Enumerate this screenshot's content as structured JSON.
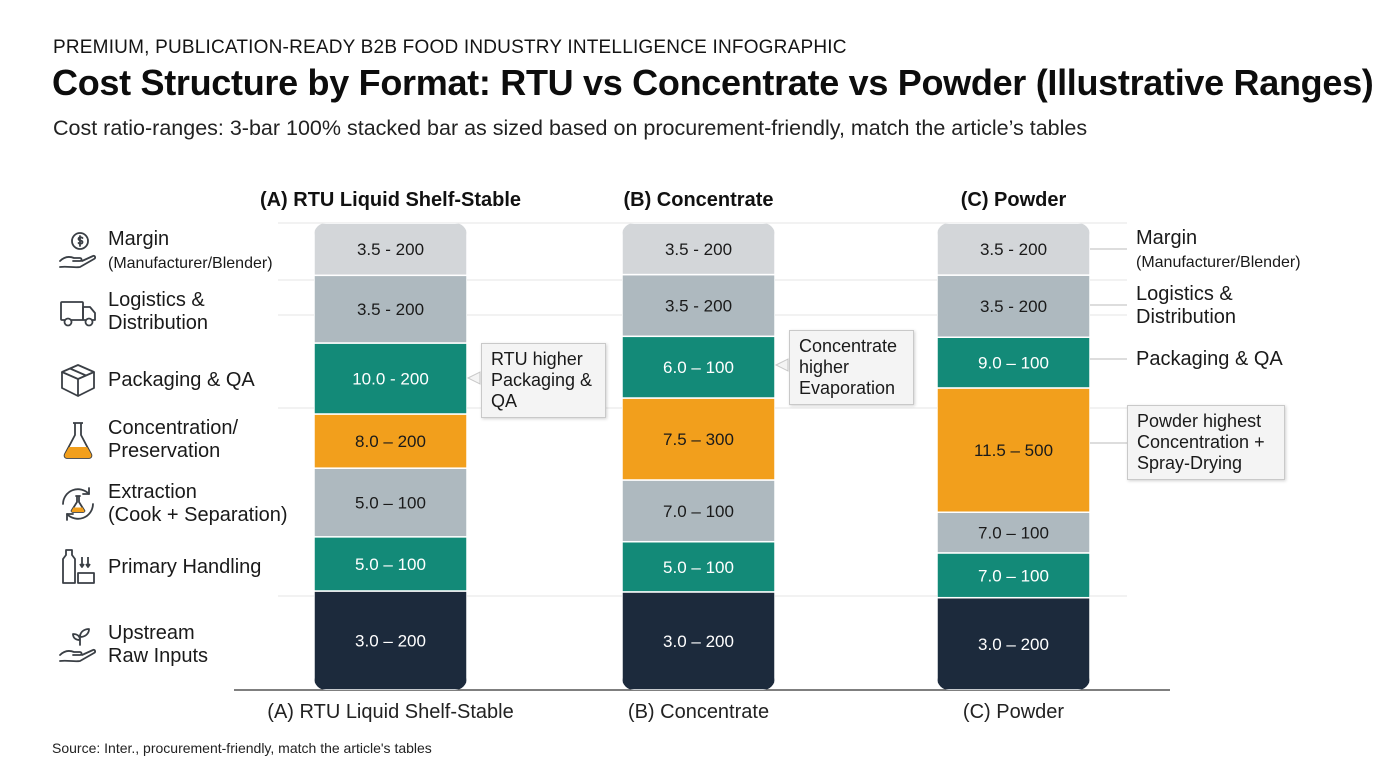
{
  "header": {
    "eyebrow": "PREMIUM, PUBLICATION-READY B2B FOOD INDUSTRY INTELLIGENCE INFOGRAPHIC",
    "title": "Cost Structure by Format: RTU vs Concentrate vs Powder (Illustrative Ranges)",
    "subtitle": "Cost ratio-ranges: 3-bar 100% stacked bar as sized based on procurement-friendly, match the article’s tables"
  },
  "source": "Source: Inter., procurement-friendly, match the article's tables",
  "legend": [
    {
      "key": "margin",
      "line1": "Margin",
      "line2": "(Manufacturer/Blender)",
      "icon": "dollar-hand-icon"
    },
    {
      "key": "logistics",
      "line1": "Logistics &",
      "line2": "Distribution",
      "icon": "truck-icon"
    },
    {
      "key": "packaging",
      "line1": "Packaging & QA",
      "line2": "",
      "icon": "box-icon"
    },
    {
      "key": "concentration",
      "line1": "Concentration/",
      "line2": "Preservation",
      "icon": "flask-icon"
    },
    {
      "key": "extraction",
      "line1": "Extraction",
      "line2": "(Cook + Separation)",
      "icon": "cycle-flask-icon"
    },
    {
      "key": "handling",
      "line1": "Primary Handling",
      "line2": "",
      "icon": "bottle-handling-icon"
    },
    {
      "key": "upstream",
      "line1": "Upstream",
      "line2": "Raw Inputs",
      "icon": "sprout-hand-icon"
    }
  ],
  "right_labels": [
    {
      "line1": "Margin",
      "line2": "(Manufacturer/Blender)"
    },
    {
      "line1": "Logistics &",
      "line2": "Distribution"
    },
    {
      "line1": "Packaging & QA",
      "line2": ""
    }
  ],
  "callouts": [
    {
      "key": "rtu",
      "lines": [
        "RTU higher",
        "Packaging &",
        "QA"
      ]
    },
    {
      "key": "concentrate",
      "lines": [
        "Concentrate",
        "higher",
        "Evaporation"
      ]
    },
    {
      "key": "powder",
      "lines": [
        "Powder highest",
        "Concentration +",
        "Spray-Drying"
      ]
    }
  ],
  "colors": {
    "margin": "#d3d6d9",
    "logistics": "#aeb9bf",
    "packaging": "#138a78",
    "concentration": "#f29f1c",
    "extraction": "#aeb9bf",
    "handling": "#138a78",
    "upstream": "#1c2a3c",
    "text_dark": "#1a1a1a",
    "text_light": "#ffffff"
  },
  "chart_data": {
    "type": "bar",
    "stacked": "100%",
    "categories": [
      "(A) RTU Liquid Shelf-Stable",
      "(B) Concentrate",
      "(C) Powder"
    ],
    "stack_order_bottom_to_top": [
      "upstream",
      "handling",
      "extraction",
      "concentration",
      "packaging",
      "logistics",
      "margin"
    ],
    "series": [
      {
        "key": "upstream",
        "labels": [
          "3.0 – 200",
          "3.0 – 200",
          "3.0 – 200"
        ],
        "share_pct": [
          21.2,
          21.3,
          20.2
        ]
      },
      {
        "key": "handling",
        "labels": [
          "5.0 – 100",
          "5.0 – 100",
          "7.0 – 100"
        ],
        "share_pct": [
          11.6,
          10.9,
          9.8
        ]
      },
      {
        "key": "extraction",
        "labels": [
          "5.0 – 100",
          "7.0 – 100",
          "7.0 – 100"
        ],
        "share_pct": [
          14.7,
          13.4,
          8.9
        ]
      },
      {
        "key": "concentration",
        "labels": [
          "8.0 – 200",
          "7.5 – 300",
          "11.5 – 500"
        ],
        "share_pct": [
          11.6,
          17.8,
          27.2
        ]
      },
      {
        "key": "packaging",
        "labels": [
          "10.0 - 200",
          "6.0 – 100",
          "9.0 – 100"
        ],
        "share_pct": [
          15.2,
          13.4,
          11.1
        ]
      },
      {
        "key": "logistics",
        "labels": [
          "3.5 - 200",
          "3.5 - 200",
          "3.5 - 200"
        ],
        "share_pct": [
          14.5,
          13.4,
          13.6
        ]
      },
      {
        "key": "margin",
        "labels": [
          "3.5 - 200",
          "3.5 - 200",
          "3.5 - 200"
        ],
        "share_pct": [
          11.2,
          11.2,
          11.4
        ]
      }
    ],
    "grid": true,
    "legend": "left"
  }
}
